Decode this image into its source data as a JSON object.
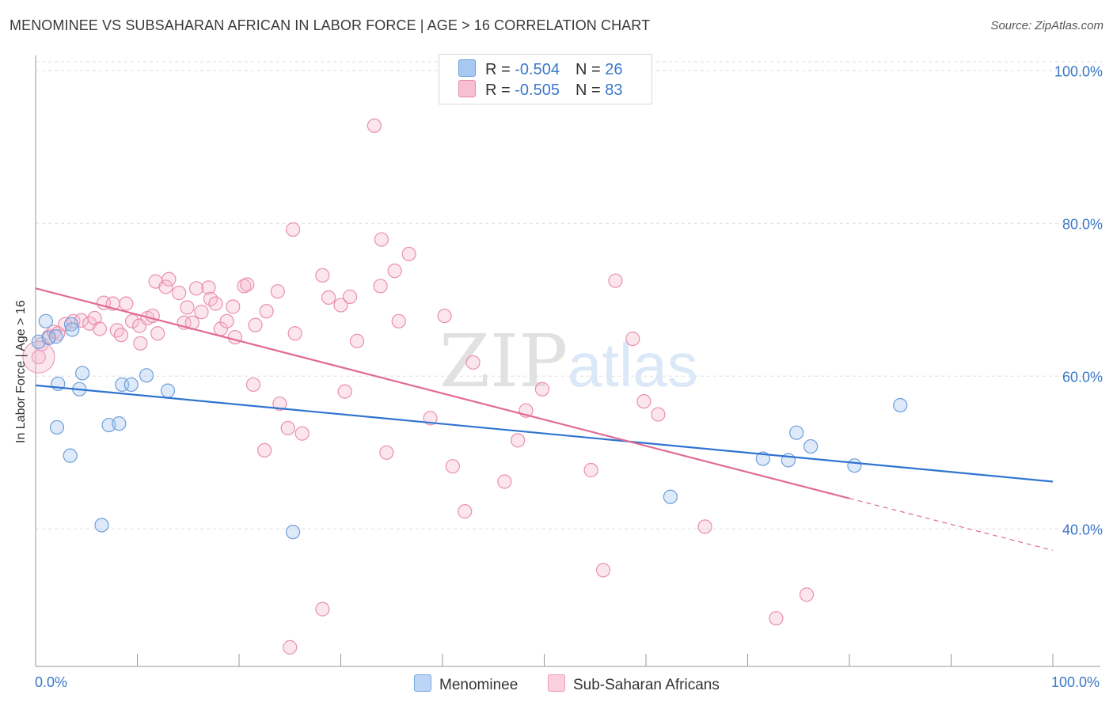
{
  "title": "MENOMINEE VS SUBSAHARAN AFRICAN IN LABOR FORCE | AGE > 16 CORRELATION CHART",
  "source": "Source: ZipAtlas.com",
  "watermark": {
    "zip": "ZIP",
    "atlas": "atlas"
  },
  "legend_top": {
    "rows": [
      {
        "r_label": "R = ",
        "r_value": "-0.504",
        "n_label": "N = ",
        "n_value": "26",
        "color": "#a9c8ef",
        "border": "#6a9fdc"
      },
      {
        "r_label": "R = ",
        "r_value": "-0.505",
        "n_label": "N = ",
        "n_value": "83",
        "color": "#f7bfd0",
        "border": "#e58aa8"
      }
    ]
  },
  "legend_bottom": [
    {
      "label": "Menominee",
      "color": "#bcd5f4",
      "border": "#7aa9e0"
    },
    {
      "label": "Sub-Saharan Africans",
      "color": "#fad0dd",
      "border": "#ee9ab5"
    }
  ],
  "colors": {
    "menominee_fill": "rgba(160,196,238,0.35)",
    "menominee_stroke": "#6d9edb",
    "menominee_line": "#2f74d0",
    "subsaharan_fill": "rgba(245,182,202,0.35)",
    "subsaharan_stroke": "#e98fae",
    "subsaharan_line": "#e06b96",
    "grid": "#dddddd",
    "axis_text": "#3a78c9"
  },
  "chart_data": {
    "type": "scatter",
    "title": "MENOMINEE VS SUBSAHARAN AFRICAN IN LABOR FORCE | AGE > 16 CORRELATION CHART",
    "xlabel": "",
    "ylabel": "In Labor Force | Age > 16",
    "xlim": [
      0,
      100
    ],
    "ylim": [
      22,
      102
    ],
    "x_tick_labels": [
      "0.0%",
      "100.0%"
    ],
    "y_ticks": [
      40,
      60,
      80,
      100
    ],
    "y_tick_labels": [
      "40.0%",
      "60.0%",
      "80.0%",
      "100.0%"
    ],
    "grid": true,
    "legend_position": "top-center",
    "series": [
      {
        "name": "Menominee",
        "points": [
          [
            0.3,
            64.5
          ],
          [
            1.0,
            67.2
          ],
          [
            1.3,
            65.0
          ],
          [
            2.0,
            65.2
          ],
          [
            3.5,
            66.8
          ],
          [
            3.6,
            66.1
          ],
          [
            2.2,
            59.0
          ],
          [
            4.3,
            58.3
          ],
          [
            4.6,
            60.4
          ],
          [
            2.1,
            53.3
          ],
          [
            3.4,
            49.6
          ],
          [
            7.2,
            53.6
          ],
          [
            8.2,
            53.8
          ],
          [
            8.5,
            58.9
          ],
          [
            9.4,
            58.9
          ],
          [
            10.9,
            60.1
          ],
          [
            13.0,
            58.1
          ],
          [
            6.5,
            40.5
          ],
          [
            25.3,
            39.6
          ],
          [
            71.5,
            49.2
          ],
          [
            74.0,
            49.0
          ],
          [
            74.8,
            52.6
          ],
          [
            76.2,
            50.8
          ],
          [
            80.5,
            48.3
          ],
          [
            85.0,
            56.2
          ],
          [
            62.4,
            44.2
          ]
        ],
        "trend": [
          [
            0,
            58.8
          ],
          [
            100,
            46.2
          ]
        ]
      },
      {
        "name": "Sub-Saharan Africans",
        "points": [
          [
            0.3,
            62.5
          ],
          [
            0.6,
            64.2
          ],
          [
            1.3,
            65.2
          ],
          [
            1.8,
            65.8
          ],
          [
            2.2,
            65.6
          ],
          [
            2.9,
            66.8
          ],
          [
            3.7,
            67.2
          ],
          [
            4.5,
            67.3
          ],
          [
            5.3,
            66.9
          ],
          [
            5.8,
            67.6
          ],
          [
            6.3,
            66.2
          ],
          [
            6.7,
            69.6
          ],
          [
            7.6,
            69.5
          ],
          [
            8.0,
            66.0
          ],
          [
            8.4,
            65.4
          ],
          [
            8.9,
            69.5
          ],
          [
            9.5,
            67.2
          ],
          [
            10.2,
            66.6
          ],
          [
            10.3,
            64.3
          ],
          [
            11.0,
            67.6
          ],
          [
            11.5,
            67.9
          ],
          [
            12.0,
            65.6
          ],
          [
            11.8,
            72.4
          ],
          [
            12.8,
            71.7
          ],
          [
            13.1,
            72.7
          ],
          [
            14.1,
            70.9
          ],
          [
            14.6,
            67.0
          ],
          [
            14.9,
            69.0
          ],
          [
            15.4,
            67.0
          ],
          [
            15.8,
            71.5
          ],
          [
            16.3,
            68.4
          ],
          [
            17.0,
            71.6
          ],
          [
            17.2,
            70.1
          ],
          [
            17.7,
            69.5
          ],
          [
            18.2,
            66.2
          ],
          [
            18.8,
            67.2
          ],
          [
            19.4,
            69.1
          ],
          [
            19.6,
            65.1
          ],
          [
            20.5,
            71.8
          ],
          [
            20.8,
            72.0
          ],
          [
            21.4,
            58.9
          ],
          [
            21.6,
            66.7
          ],
          [
            22.7,
            68.5
          ],
          [
            23.8,
            71.1
          ],
          [
            24.0,
            56.4
          ],
          [
            24.8,
            53.2
          ],
          [
            22.5,
            50.3
          ],
          [
            25.0,
            24.5
          ],
          [
            25.3,
            79.2
          ],
          [
            25.5,
            65.6
          ],
          [
            26.2,
            52.5
          ],
          [
            28.2,
            73.2
          ],
          [
            28.2,
            29.5
          ],
          [
            28.8,
            70.3
          ],
          [
            30.0,
            69.3
          ],
          [
            30.4,
            58.0
          ],
          [
            30.9,
            70.4
          ],
          [
            31.6,
            64.6
          ],
          [
            33.3,
            92.8
          ],
          [
            33.9,
            71.8
          ],
          [
            34.0,
            77.9
          ],
          [
            34.5,
            50.0
          ],
          [
            35.3,
            73.8
          ],
          [
            35.7,
            67.2
          ],
          [
            36.7,
            76.0
          ],
          [
            38.8,
            54.5
          ],
          [
            40.2,
            67.9
          ],
          [
            41.0,
            48.2
          ],
          [
            42.2,
            42.3
          ],
          [
            43.0,
            61.8
          ],
          [
            46.1,
            46.2
          ],
          [
            47.4,
            51.6
          ],
          [
            49.8,
            58.3
          ],
          [
            54.6,
            47.7
          ],
          [
            55.8,
            34.6
          ],
          [
            57.0,
            72.5
          ],
          [
            58.7,
            64.9
          ],
          [
            59.8,
            56.7
          ],
          [
            65.8,
            40.3
          ],
          [
            72.8,
            28.3
          ],
          [
            75.8,
            31.4
          ],
          [
            61.2,
            55.0
          ],
          [
            48.2,
            55.5
          ]
        ],
        "trend": [
          [
            0,
            71.5
          ],
          [
            80,
            44.0
          ]
        ],
        "trend_dashed": [
          [
            80,
            44.0
          ],
          [
            100,
            37.2
          ]
        ]
      }
    ]
  }
}
